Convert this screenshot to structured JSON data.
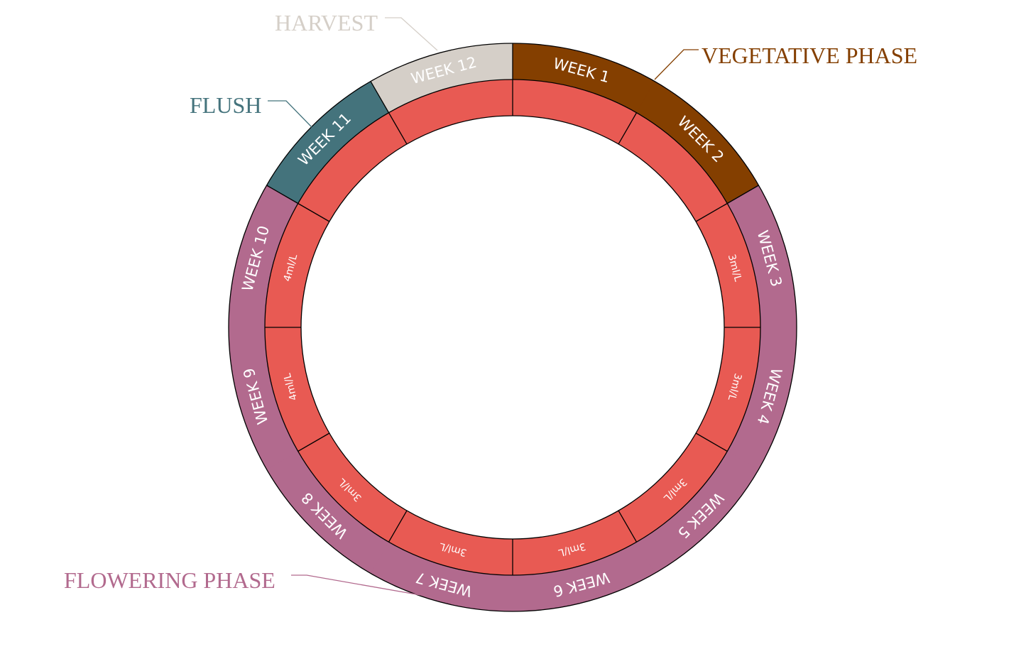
{
  "colors": {
    "vegetative": "#843F00",
    "flowering": "#B26A8E",
    "flush": "#44737C",
    "harvest": "#D5CFC8",
    "dose_ring": "#E85A53",
    "outline": "#000000"
  },
  "weeks": [
    {
      "label": "WEEK 1",
      "phase": "vegetative",
      "dose": ""
    },
    {
      "label": "WEEK 2",
      "phase": "vegetative",
      "dose": ""
    },
    {
      "label": "WEEK 3",
      "phase": "flowering",
      "dose": "3ml/L"
    },
    {
      "label": "WEEK 4",
      "phase": "flowering",
      "dose": "3ml/L"
    },
    {
      "label": "WEEK 5",
      "phase": "flowering",
      "dose": "3ml/L"
    },
    {
      "label": "WEEK 6",
      "phase": "flowering",
      "dose": "3ml/L"
    },
    {
      "label": "WEEK 7",
      "phase": "flowering",
      "dose": "3ml/L"
    },
    {
      "label": "WEEK 8",
      "phase": "flowering",
      "dose": "3ml/L"
    },
    {
      "label": "WEEK 9",
      "phase": "flowering",
      "dose": "4ml/L"
    },
    {
      "label": "WEEK 10",
      "phase": "flowering",
      "dose": "4ml/L"
    },
    {
      "label": "WEEK 11",
      "phase": "flush",
      "dose": ""
    },
    {
      "label": "WEEK 12",
      "phase": "harvest",
      "dose": ""
    }
  ],
  "phase_labels": {
    "harvest": "HARVEST",
    "vegetative": "VEGETATIVE PHASE",
    "flush": "FLUSH",
    "flowering": "FLOWERING PHASE"
  }
}
